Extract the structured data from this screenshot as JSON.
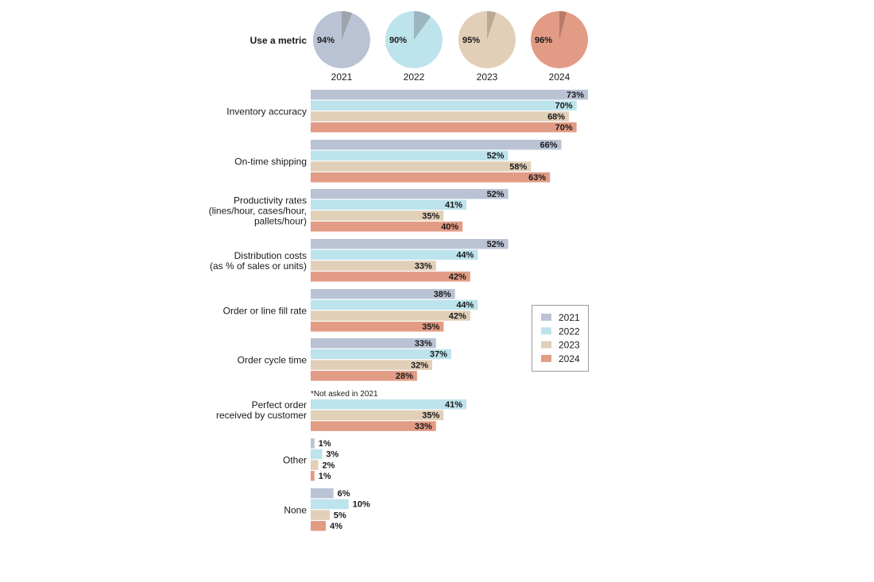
{
  "chart_data": [
    {
      "type": "pie",
      "row_label": "Use a metric",
      "pies": [
        {
          "year": "2021",
          "value": 94,
          "label": "94%",
          "color": "#bac3d4",
          "wedge_color": "#9ea3ae"
        },
        {
          "year": "2022",
          "value": 90,
          "label": "90%",
          "color": "#bde3ec",
          "wedge_color": "#9bb6be"
        },
        {
          "year": "2023",
          "value": 95,
          "label": "95%",
          "color": "#e1cfb8",
          "wedge_color": "#bba995"
        },
        {
          "year": "2024",
          "value": 96,
          "label": "96%",
          "color": "#e29b84",
          "wedge_color": "#b97a69"
        }
      ]
    },
    {
      "type": "bar",
      "orientation": "horizontal",
      "xlim": [
        0,
        73
      ],
      "series": [
        {
          "name": "2021",
          "color": "#bac3d4"
        },
        {
          "name": "2022",
          "color": "#bde3ec"
        },
        {
          "name": "2023",
          "color": "#e1cfb8"
        },
        {
          "name": "2024",
          "color": "#e29b84"
        }
      ],
      "categories": [
        {
          "label": [
            "Inventory accuracy"
          ],
          "values": [
            73,
            70,
            68,
            70
          ],
          "labels": [
            "73%",
            "70%",
            "68%",
            "70%"
          ]
        },
        {
          "label": [
            "On-time shipping"
          ],
          "values": [
            66,
            52,
            58,
            63
          ],
          "labels": [
            "66%",
            "52%",
            "58%",
            "63%"
          ]
        },
        {
          "label": [
            "Productivity rates",
            "(lines/hour, cases/hour,",
            "pallets/hour)"
          ],
          "values": [
            52,
            41,
            35,
            40
          ],
          "labels": [
            "52%",
            "41%",
            "35%",
            "40%"
          ]
        },
        {
          "label": [
            "Distribution costs",
            "(as % of sales or units)"
          ],
          "values": [
            52,
            44,
            33,
            42
          ],
          "labels": [
            "52%",
            "44%",
            "33%",
            "42%"
          ]
        },
        {
          "label": [
            "Order or line fill rate"
          ],
          "values": [
            38,
            44,
            42,
            35
          ],
          "labels": [
            "38%",
            "44%",
            "42%",
            "35%"
          ]
        },
        {
          "label": [
            "Order cycle time"
          ],
          "values": [
            33,
            37,
            32,
            28
          ],
          "labels": [
            "33%",
            "37%",
            "32%",
            "28%"
          ]
        },
        {
          "label": [
            "Perfect order",
            "received by customer"
          ],
          "values": [
            null,
            41,
            35,
            33
          ],
          "labels": [
            "",
            "41%",
            "35%",
            "33%"
          ],
          "note": "*Not asked in 2021"
        },
        {
          "label": [
            "Other"
          ],
          "values": [
            1,
            3,
            2,
            1
          ],
          "labels": [
            "1%",
            "3%",
            "2%",
            "1%"
          ]
        },
        {
          "label": [
            "None"
          ],
          "values": [
            6,
            10,
            5,
            4
          ],
          "labels": [
            "6%",
            "10%",
            "5%",
            "4%"
          ]
        }
      ],
      "legend": {
        "position": "right",
        "entries": [
          "2021",
          "2022",
          "2023",
          "2024"
        ]
      }
    }
  ]
}
